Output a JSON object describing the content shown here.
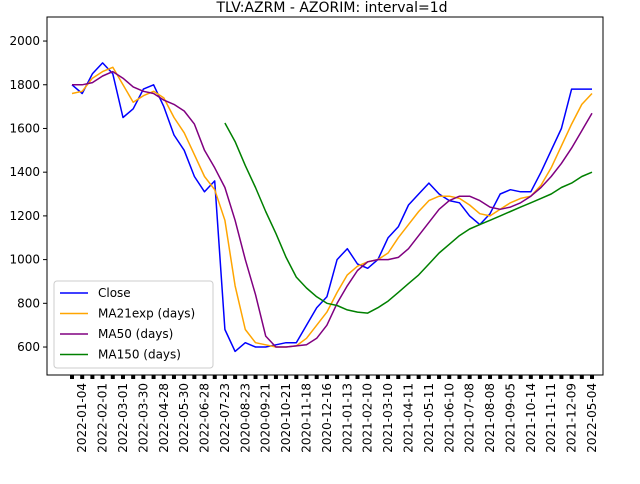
{
  "chart_data": {
    "type": "line",
    "title": "TLV:AZRM - AZORIM: interval=1d",
    "categories": [
      null,
      "2022-01-04",
      null,
      "2022-02-01",
      null,
      "2022-03-01",
      null,
      "2022-03-30",
      null,
      "2022-04-28",
      null,
      "2022-05-30",
      null,
      "2022-06-28",
      null,
      "2022-07-23",
      null,
      "2020-08-23",
      null,
      "2020-09-21",
      null,
      "2020-10-21",
      null,
      "2020-11-18",
      null,
      "2020-12-16",
      null,
      "2021-01-13",
      null,
      "2021-02-10",
      null,
      "2021-03-10",
      null,
      "2021-04-11",
      null,
      "2021-05-11",
      null,
      "2021-06-10",
      null,
      "2021-07-08",
      null,
      "2021-08-08",
      null,
      "2021-09-05",
      null,
      "2021-10-14",
      null,
      "2021-11-11",
      null,
      "2021-12-09",
      null,
      "2022-05-04"
    ],
    "series": [
      {
        "name": "Close",
        "color": "#0000ff",
        "values": [
          1800,
          1760,
          1850,
          1900,
          1850,
          1650,
          1690,
          1780,
          1800,
          1700,
          1570,
          1500,
          1380,
          1310,
          1360,
          680,
          580,
          620,
          600,
          600,
          610,
          620,
          620,
          700,
          780,
          830,
          1000,
          1050,
          980,
          960,
          1000,
          1100,
          1150,
          1250,
          1300,
          1350,
          1300,
          1270,
          1260,
          1200,
          1160,
          1210,
          1300,
          1320,
          1310,
          1310,
          1400,
          1500,
          1600,
          1780,
          1780,
          1780
        ]
      },
      {
        "name": "MA21exp (days)",
        "color": "#ffa500",
        "values": [
          1760,
          1770,
          1830,
          1860,
          1880,
          1800,
          1720,
          1750,
          1770,
          1740,
          1650,
          1580,
          1480,
          1380,
          1320,
          1180,
          880,
          680,
          620,
          610,
          600,
          600,
          605,
          640,
          700,
          760,
          850,
          930,
          970,
          990,
          1000,
          1030,
          1100,
          1160,
          1220,
          1270,
          1290,
          1290,
          1280,
          1250,
          1210,
          1200,
          1230,
          1260,
          1280,
          1290,
          1340,
          1420,
          1520,
          1620,
          1710,
          1760
        ]
      },
      {
        "name": "MA50 (days)",
        "color": "#800080",
        "values": [
          1800,
          1800,
          1810,
          1840,
          1860,
          1830,
          1790,
          1770,
          1760,
          1730,
          1710,
          1680,
          1620,
          1500,
          1420,
          1330,
          1180,
          1000,
          840,
          650,
          600,
          600,
          605,
          610,
          640,
          700,
          800,
          880,
          950,
          990,
          1000,
          1000,
          1010,
          1050,
          1110,
          1170,
          1230,
          1270,
          1290,
          1290,
          1270,
          1240,
          1230,
          1240,
          1260,
          1290,
          1330,
          1380,
          1440,
          1510,
          1590,
          1670
        ]
      },
      {
        "name": "MA150 (days)",
        "color": "#008000",
        "values": [
          null,
          null,
          null,
          null,
          null,
          null,
          null,
          null,
          null,
          null,
          null,
          null,
          null,
          null,
          null,
          1625,
          1540,
          1430,
          1330,
          1220,
          1120,
          1010,
          920,
          870,
          830,
          800,
          790,
          770,
          760,
          755,
          780,
          810,
          850,
          890,
          930,
          980,
          1030,
          1070,
          1110,
          1140,
          1160,
          1180,
          1200,
          1220,
          1240,
          1260,
          1280,
          1300,
          1330,
          1350,
          1380,
          1400
        ]
      }
    ],
    "ylim": [
      472,
      2110
    ],
    "yticks": [
      600,
      800,
      1000,
      1200,
      1400,
      1600,
      1800,
      2000
    ],
    "legend": "lower left"
  }
}
